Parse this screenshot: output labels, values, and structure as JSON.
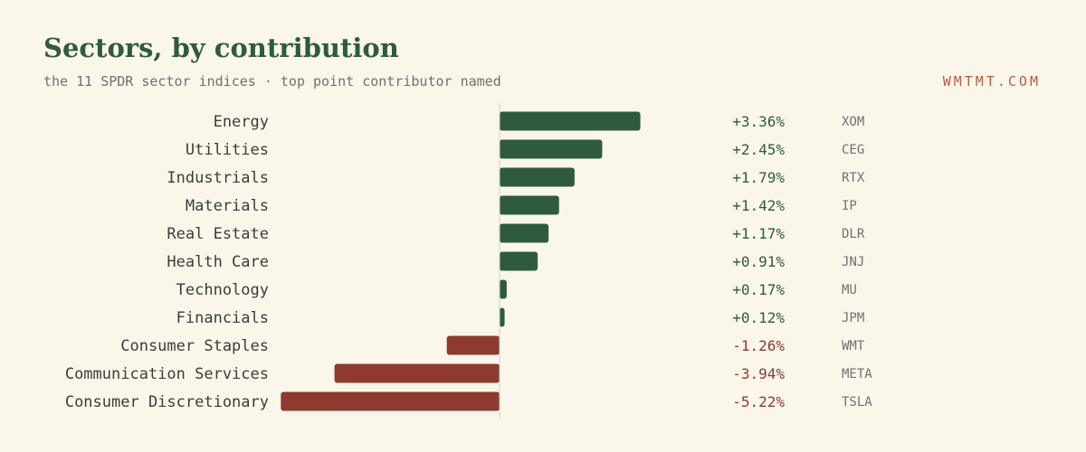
{
  "header": {
    "title": "Sectors, by contribution",
    "subtitle": "the 11 SPDR sector indices · top point contributor named",
    "brand": "WMTMT.COM"
  },
  "colors": {
    "positive": "#2e5b3f",
    "negative": "#8e3a2f",
    "background": "#faf7ea",
    "brand": "#b85c3c"
  },
  "chart_data": {
    "type": "bar",
    "orientation": "horizontal",
    "title": "Sectors, by contribution",
    "subtitle": "the 11 SPDR sector indices · top point contributor named",
    "categories": [
      "Energy",
      "Utilities",
      "Industrials",
      "Materials",
      "Real Estate",
      "Health Care",
      "Technology",
      "Financials",
      "Consumer Staples",
      "Communication Services",
      "Consumer Discretionary"
    ],
    "values": [
      3.36,
      2.45,
      1.79,
      1.42,
      1.17,
      0.91,
      0.17,
      0.12,
      -1.26,
      -3.94,
      -5.22
    ],
    "value_labels": [
      "+3.36%",
      "+2.45%",
      "+1.79%",
      "+1.42%",
      "+1.17%",
      "+0.91%",
      "+0.17%",
      "+0.12%",
      "-1.26%",
      "-3.94%",
      "-5.22%"
    ],
    "top_contributors": [
      "XOM",
      "CEG",
      "RTX",
      "IP",
      "DLR",
      "JNJ",
      "MU",
      "JPM",
      "WMT",
      "META",
      "TSLA"
    ],
    "unit": "%",
    "xlim": [
      -5.22,
      3.36
    ],
    "grid": false,
    "legend": "none"
  }
}
